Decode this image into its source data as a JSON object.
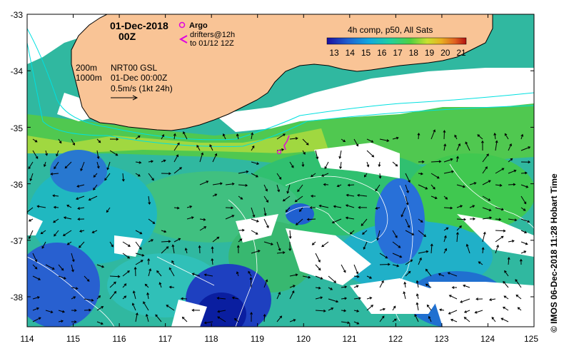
{
  "map": {
    "date_line1": "01-Dec-2018",
    "date_line2": "00Z",
    "legend": {
      "argo_label": "Argo",
      "drifters_line1": "drifters@12h",
      "drifters_line2": "to 01/12 12Z",
      "argo_color": "#e000e0",
      "drifter_color": "#e000e0"
    },
    "info": {
      "isobath1": "200m",
      "isobath2": "1000m",
      "source": "NRT00 GSL",
      "datetime": "01-Dec 00:00Z",
      "scale": "0.5m/s (1kt 24h)"
    },
    "colorbar": {
      "title": "4h comp, p50, All Sats",
      "ticks": [
        "13",
        "14",
        "15",
        "16",
        "17",
        "18",
        "19",
        "20",
        "21"
      ],
      "colors": [
        "#1a0fa0",
        "#2060d0",
        "#10a8e0",
        "#20d0a0",
        "#50d040",
        "#c8e030",
        "#e8b020",
        "#e06020",
        "#b01010"
      ]
    },
    "credit": "© IMOS 06-Dec-2018 11:28 Hobart Time",
    "lon_ticks": [
      "114",
      "115",
      "116",
      "117",
      "118",
      "119",
      "120",
      "121",
      "122",
      "123",
      "124",
      "125"
    ],
    "lat_ticks": [
      "-33",
      "-34",
      "-35",
      "-36",
      "-37",
      "-38"
    ],
    "colors": {
      "land": "#f9c496",
      "ocean_blue": "#2060d0",
      "ocean_green": "#30c060",
      "ocean_cyan": "#10b8d0",
      "shelf_yellow": "#c8e030",
      "isobath_line": "#00e0e0",
      "contour_line": "#ffffff"
    }
  }
}
